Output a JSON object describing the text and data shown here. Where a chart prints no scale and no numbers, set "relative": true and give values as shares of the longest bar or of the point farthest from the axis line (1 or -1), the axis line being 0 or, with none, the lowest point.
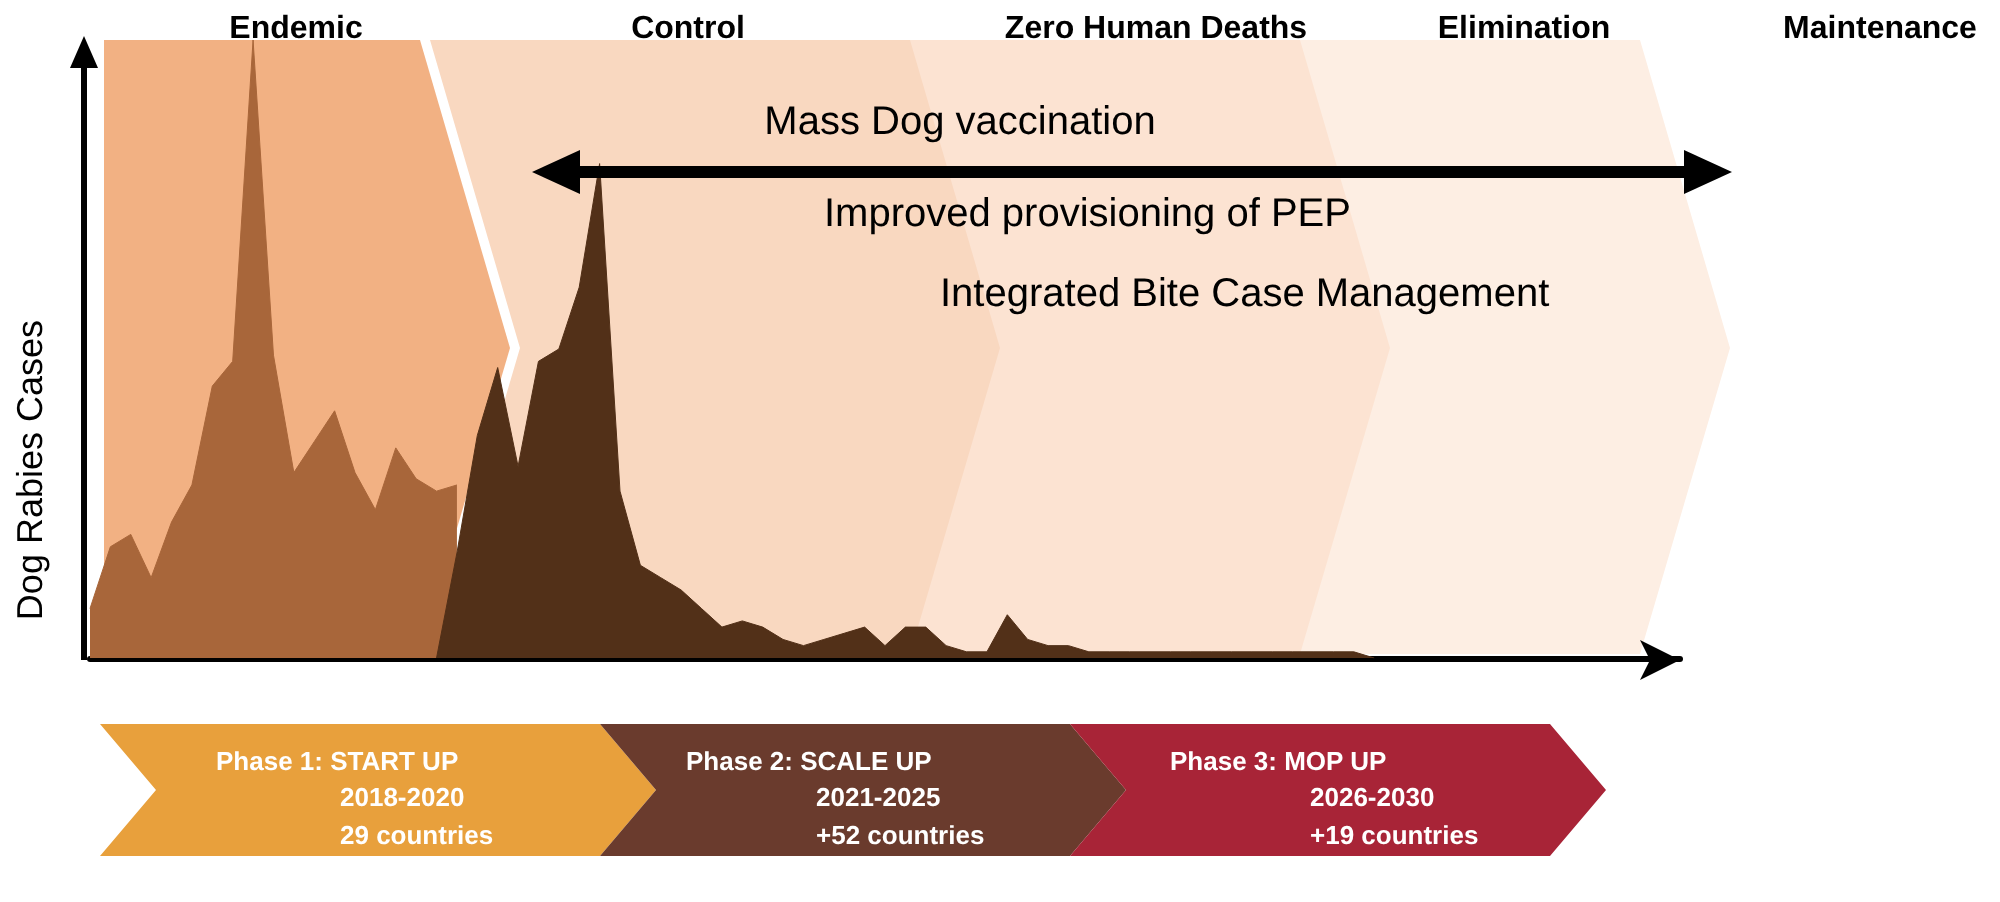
{
  "chart_data": {
    "type": "area",
    "relative": true,
    "ylabel": "Dog Rabies Cases",
    "categories": [
      null,
      null,
      null,
      null,
      null,
      null,
      null,
      null,
      null,
      null,
      null,
      null,
      null,
      null,
      null,
      null,
      null,
      null,
      null,
      null,
      null,
      null,
      null,
      null,
      null,
      null,
      null,
      null,
      null,
      null,
      null,
      null,
      null,
      null,
      null,
      null,
      null,
      null,
      null,
      null,
      null,
      null,
      null,
      null,
      null,
      null,
      null,
      null,
      null,
      null,
      null,
      null,
      null,
      null,
      null,
      null,
      null,
      null,
      null,
      null,
      null,
      null,
      null,
      null,
      null,
      null,
      null,
      null,
      null,
      null,
      null,
      null,
      null,
      null,
      null,
      null,
      null,
      null,
      null
    ],
    "series": [
      {
        "color": "#a8663a",
        "values": [
          0.08,
          0.18,
          0.2,
          0.13,
          0.22,
          0.28,
          0.44,
          0.48,
          1.0,
          0.49,
          0.3,
          0.35,
          0.4,
          0.3,
          0.24,
          0.34,
          0.29,
          0.27,
          0.28,
          null,
          null,
          null,
          null,
          null,
          null,
          null,
          null,
          null,
          null,
          null,
          null,
          null,
          null,
          null,
          null,
          null,
          null,
          null,
          null,
          null,
          null,
          null,
          null,
          null,
          null,
          null,
          null,
          null,
          null,
          null,
          null,
          null,
          null,
          null,
          null,
          null,
          null,
          null,
          null,
          null,
          null,
          null,
          null,
          null,
          null,
          null,
          null,
          null,
          null,
          null,
          null,
          null,
          null,
          null,
          null,
          null,
          null,
          null,
          null
        ]
      },
      {
        "color": "#523018",
        "values": [
          null,
          null,
          null,
          null,
          null,
          null,
          null,
          null,
          null,
          null,
          null,
          null,
          null,
          null,
          null,
          null,
          null,
          0.0,
          0.17,
          0.36,
          0.47,
          0.31,
          0.48,
          0.5,
          0.6,
          0.8,
          0.27,
          0.15,
          0.13,
          0.11,
          0.08,
          0.05,
          0.06,
          0.05,
          0.03,
          0.02,
          0.03,
          0.04,
          0.05,
          0.02,
          0.05,
          0.05,
          0.02,
          0.01,
          0.01,
          0.07,
          0.03,
          0.02,
          0.02,
          0.01,
          0.01,
          0.01,
          0.01,
          0.01,
          0.01,
          0.01,
          0.01,
          0.01,
          0.01,
          0.01,
          0.01,
          0.01,
          0.01,
          0.0,
          null,
          null,
          null,
          null,
          null,
          null,
          null,
          null,
          null,
          null,
          null,
          null,
          null,
          null,
          null
        ]
      }
    ],
    "annotations": [
      "Endemic",
      "Control",
      "Zero Human Deaths",
      "Elimination",
      "Maintenance",
      "Mass Dog vaccination",
      "Improved provisioning of PEP",
      "Integrated Bite Case Management",
      "Phase 1: START UP",
      "2018-2020",
      "29 countries",
      "Phase 2: SCALE UP",
      "2021-2025",
      "+52 countries",
      "Phase 3: MOP UP",
      "2026-2030",
      "+19 countries"
    ],
    "grid": false
  }
}
